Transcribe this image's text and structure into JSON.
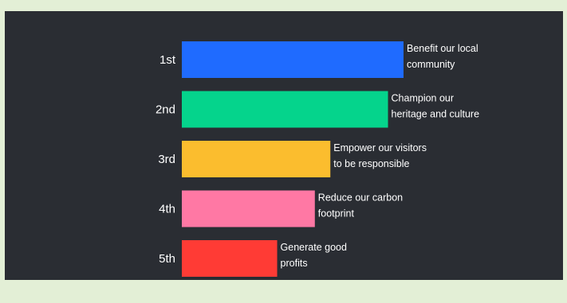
{
  "chart_data": {
    "type": "bar",
    "orientation": "horizontal",
    "categories": [
      "1st",
      "2nd",
      "3rd",
      "4th",
      "5th"
    ],
    "values": [
      100,
      93,
      67,
      60,
      43
    ],
    "annotations": [
      [
        "Benefit our local",
        "community"
      ],
      [
        "Champion our",
        "heritage and culture"
      ],
      [
        "Empower our visitors",
        "to be responsible"
      ],
      [
        "Reduce our carbon",
        "footprint"
      ],
      [
        "Generate good",
        "profits"
      ]
    ],
    "colors": [
      "#1f6bff",
      "#05d48c",
      "#fbbd2e",
      "#ff78a4",
      "#ff3b35"
    ],
    "xlim": [
      0,
      100
    ],
    "grid": false,
    "legend": "none",
    "background": "#2a2d33"
  }
}
